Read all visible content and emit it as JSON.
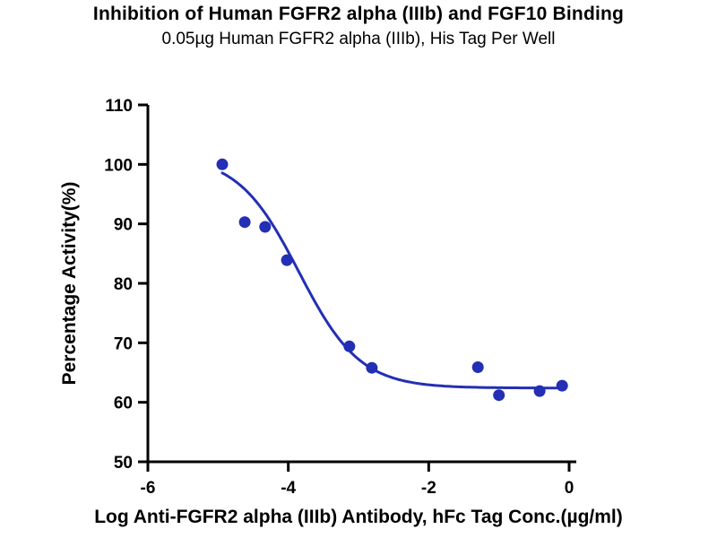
{
  "header": {
    "title": "Inhibition of Human FGFR2 alpha (IIIb) and FGF10 Binding",
    "subtitle": "0.05µg Human FGFR2 alpha (IIIb), His Tag Per Well"
  },
  "chart_data": {
    "type": "scatter",
    "title": "Inhibition of Human FGFR2 alpha (IIIb) and FGF10 Binding",
    "subtitle": "0.05µg Human FGFR2 alpha (IIIb), His Tag Per Well",
    "xlabel": "Log Anti-FGFR2 alpha (IIIb) Antibody, hFc Tag Conc.(µg/ml)",
    "ylabel": "Percentage Activity(%)",
    "xlim": [
      -6,
      0
    ],
    "ylim": [
      50,
      110
    ],
    "x_ticks": [
      -6,
      -4,
      -2,
      0
    ],
    "y_ticks": [
      50,
      60,
      70,
      80,
      90,
      100,
      110
    ],
    "grid": false,
    "legend": false,
    "points": [
      {
        "x": -4.94,
        "y": 100.0
      },
      {
        "x": -4.62,
        "y": 90.3
      },
      {
        "x": -4.33,
        "y": 89.5
      },
      {
        "x": -4.02,
        "y": 83.9
      },
      {
        "x": -3.13,
        "y": 69.4
      },
      {
        "x": -2.81,
        "y": 65.8
      },
      {
        "x": -1.3,
        "y": 65.9
      },
      {
        "x": -1.0,
        "y": 61.2
      },
      {
        "x": -0.42,
        "y": 61.9
      },
      {
        "x": -0.1,
        "y": 62.8
      }
    ],
    "fit_curve": {
      "model": "4PL-inhibition",
      "top": 101.5,
      "bottom": 62.4,
      "log_ic50": -3.85,
      "hill_slope": 1.0,
      "x_start": -4.94,
      "x_end": -0.08
    },
    "colors": {
      "series": "#232fb4",
      "axis": "#000000"
    }
  }
}
